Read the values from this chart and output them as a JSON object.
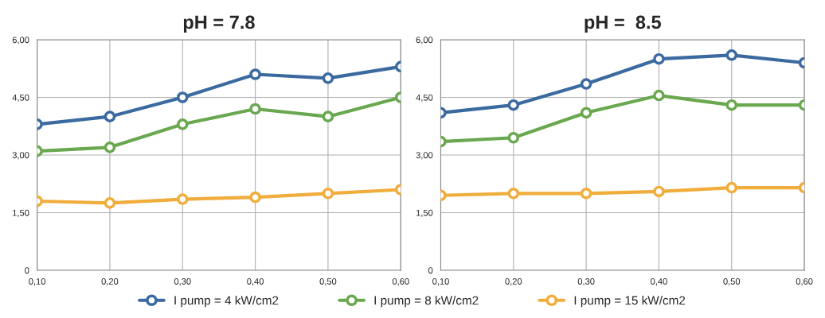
{
  "chart_data": [
    {
      "type": "line",
      "title": "pH = 7.8",
      "x": [
        0.1,
        0.2,
        0.3,
        0.4,
        0.5,
        0.6
      ],
      "xlim": [
        0.1,
        0.6
      ],
      "ylim": [
        0,
        6
      ],
      "xticks": [
        {
          "value": 0.1,
          "label": "0,10"
        },
        {
          "value": 0.2,
          "label": "0,20"
        },
        {
          "value": 0.3,
          "label": "0,30"
        },
        {
          "value": 0.4,
          "label": "0,40"
        },
        {
          "value": 0.5,
          "label": "0,50"
        },
        {
          "value": 0.6,
          "label": "0,60"
        }
      ],
      "yticks": [
        0,
        {
          "value": 1.5,
          "label": "1,50"
        },
        {
          "value": 3,
          "label": "3,00"
        },
        {
          "value": 4.5,
          "label": "4,50"
        },
        {
          "value": 6,
          "label": "6,00"
        }
      ],
      "grid": true,
      "marker": "circle",
      "line_style": "solid",
      "legend": "bottom",
      "series": [
        {
          "name": "I pump = 4 kW/cm2",
          "color": "#3b6aa0",
          "values": [
            3.8,
            4.0,
            4.5,
            5.1,
            5.0,
            5.3
          ]
        },
        {
          "name": "I pump = 8 kW/cm2",
          "color": "#6aa84f",
          "values": [
            3.1,
            3.2,
            3.8,
            4.2,
            4.0,
            4.5
          ]
        },
        {
          "name": "I pump = 15 kW/cm2",
          "color": "#f0ad3c",
          "values": [
            1.8,
            1.75,
            1.85,
            1.9,
            2.0,
            2.1
          ]
        }
      ]
    },
    {
      "type": "line",
      "title": "pH =  8.5",
      "x": [
        0.1,
        0.2,
        0.3,
        0.4,
        0.5,
        0.6
      ],
      "xlim": [
        0.1,
        0.6
      ],
      "ylim": [
        0,
        6
      ],
      "xticks": [
        {
          "value": 0.1,
          "label": "0,10"
        },
        {
          "value": 0.2,
          "label": "0,20"
        },
        {
          "value": 0.3,
          "label": "0,30"
        },
        {
          "value": 0.4,
          "label": "0,40"
        },
        {
          "value": 0.5,
          "label": "0,50"
        },
        {
          "value": 0.6,
          "label": "0,60"
        }
      ],
      "yticks": [
        0,
        {
          "value": 1.5,
          "label": "1,50"
        },
        {
          "value": 3,
          "label": "3,00"
        },
        {
          "value": 4.5,
          "label": "4,50"
        },
        {
          "value": 6,
          "label": "6,00"
        }
      ],
      "grid": true,
      "marker": "circle",
      "line_style": "solid",
      "series": [
        {
          "color": "#3b6aa0",
          "values": [
            4.1,
            4.3,
            4.85,
            5.5,
            5.6,
            5.4
          ]
        },
        {
          "color": "#6aa84f",
          "values": [
            3.35,
            3.45,
            4.1,
            4.55,
            4.3,
            4.3
          ]
        },
        {
          "color": "#f0ad3c",
          "values": [
            1.95,
            2.0,
            2.0,
            2.05,
            2.15,
            2.15
          ]
        }
      ]
    }
  ]
}
